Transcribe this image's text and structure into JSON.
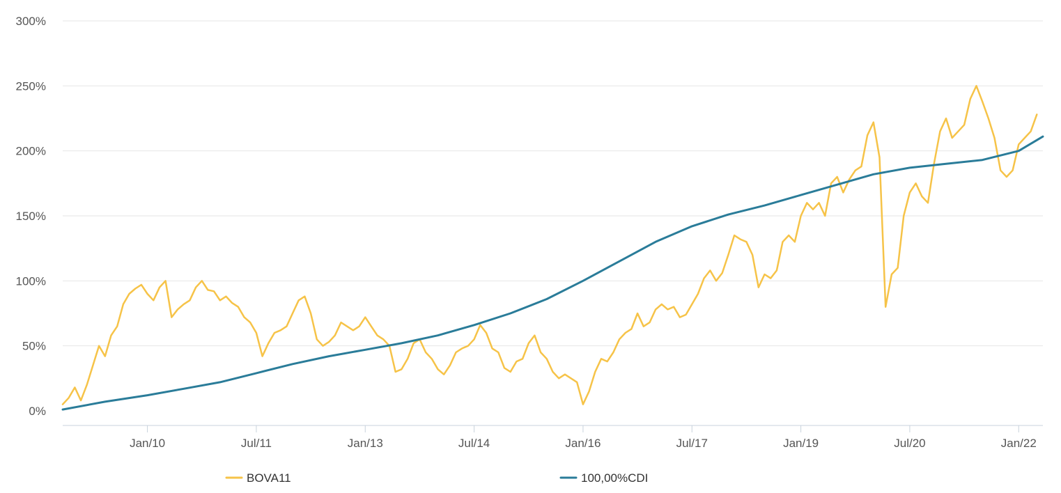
{
  "chart_data": {
    "type": "line",
    "x_tick_labels": [
      "Jan/10",
      "Jul/11",
      "Jan/13",
      "Jul/14",
      "Jan/16",
      "Jul/17",
      "Jan/19",
      "Jul/20",
      "Jan/22"
    ],
    "x_tick_dates": [
      "2010-01",
      "2011-07",
      "2013-01",
      "2014-07",
      "2016-01",
      "2017-07",
      "2019-01",
      "2020-07",
      "2022-01"
    ],
    "x_range": [
      "2008-11",
      "2022-05"
    ],
    "y_tick_labels": [
      "0%",
      "50%",
      "100%",
      "150%",
      "200%",
      "250%",
      "300%"
    ],
    "y_tick_values": [
      0,
      50,
      100,
      150,
      200,
      250,
      300
    ],
    "ylim": [
      0,
      300
    ],
    "y_unit": "%",
    "grid": "horizontal",
    "legend_position": "bottom",
    "series": [
      {
        "name": "BOVA11",
        "color": "#F6C348",
        "points": [
          [
            "2008-11",
            5
          ],
          [
            "2008-12",
            10
          ],
          [
            "2009-01",
            18
          ],
          [
            "2009-02",
            8
          ],
          [
            "2009-03",
            20
          ],
          [
            "2009-04",
            35
          ],
          [
            "2009-05",
            50
          ],
          [
            "2009-06",
            42
          ],
          [
            "2009-07",
            58
          ],
          [
            "2009-08",
            65
          ],
          [
            "2009-09",
            82
          ],
          [
            "2009-10",
            90
          ],
          [
            "2009-11",
            94
          ],
          [
            "2009-12",
            97
          ],
          [
            "2010-01",
            90
          ],
          [
            "2010-02",
            85
          ],
          [
            "2010-03",
            95
          ],
          [
            "2010-04",
            100
          ],
          [
            "2010-05",
            72
          ],
          [
            "2010-06",
            78
          ],
          [
            "2010-07",
            82
          ],
          [
            "2010-08",
            85
          ],
          [
            "2010-09",
            95
          ],
          [
            "2010-10",
            100
          ],
          [
            "2010-11",
            93
          ],
          [
            "2010-12",
            92
          ],
          [
            "2011-01",
            85
          ],
          [
            "2011-02",
            88
          ],
          [
            "2011-03",
            83
          ],
          [
            "2011-04",
            80
          ],
          [
            "2011-05",
            72
          ],
          [
            "2011-06",
            68
          ],
          [
            "2011-07",
            60
          ],
          [
            "2011-08",
            42
          ],
          [
            "2011-09",
            52
          ],
          [
            "2011-10",
            60
          ],
          [
            "2011-11",
            62
          ],
          [
            "2011-12",
            65
          ],
          [
            "2012-01",
            75
          ],
          [
            "2012-02",
            85
          ],
          [
            "2012-03",
            88
          ],
          [
            "2012-04",
            75
          ],
          [
            "2012-05",
            55
          ],
          [
            "2012-06",
            50
          ],
          [
            "2012-07",
            53
          ],
          [
            "2012-08",
            58
          ],
          [
            "2012-09",
            68
          ],
          [
            "2012-10",
            65
          ],
          [
            "2012-11",
            62
          ],
          [
            "2012-12",
            65
          ],
          [
            "2013-01",
            72
          ],
          [
            "2013-02",
            65
          ],
          [
            "2013-03",
            58
          ],
          [
            "2013-04",
            55
          ],
          [
            "2013-05",
            50
          ],
          [
            "2013-06",
            30
          ],
          [
            "2013-07",
            32
          ],
          [
            "2013-08",
            40
          ],
          [
            "2013-09",
            52
          ],
          [
            "2013-10",
            55
          ],
          [
            "2013-11",
            45
          ],
          [
            "2013-12",
            40
          ],
          [
            "2014-01",
            32
          ],
          [
            "2014-02",
            28
          ],
          [
            "2014-03",
            35
          ],
          [
            "2014-04",
            45
          ],
          [
            "2014-05",
            48
          ],
          [
            "2014-06",
            50
          ],
          [
            "2014-07",
            55
          ],
          [
            "2014-08",
            66
          ],
          [
            "2014-09",
            60
          ],
          [
            "2014-10",
            48
          ],
          [
            "2014-11",
            45
          ],
          [
            "2014-12",
            33
          ],
          [
            "2015-01",
            30
          ],
          [
            "2015-02",
            38
          ],
          [
            "2015-03",
            40
          ],
          [
            "2015-04",
            52
          ],
          [
            "2015-05",
            58
          ],
          [
            "2015-06",
            45
          ],
          [
            "2015-07",
            40
          ],
          [
            "2015-08",
            30
          ],
          [
            "2015-09",
            25
          ],
          [
            "2015-10",
            28
          ],
          [
            "2015-11",
            25
          ],
          [
            "2015-12",
            22
          ],
          [
            "2016-01",
            5
          ],
          [
            "2016-02",
            15
          ],
          [
            "2016-03",
            30
          ],
          [
            "2016-04",
            40
          ],
          [
            "2016-05",
            38
          ],
          [
            "2016-06",
            45
          ],
          [
            "2016-07",
            55
          ],
          [
            "2016-08",
            60
          ],
          [
            "2016-09",
            63
          ],
          [
            "2016-10",
            75
          ],
          [
            "2016-11",
            65
          ],
          [
            "2016-12",
            68
          ],
          [
            "2017-01",
            78
          ],
          [
            "2017-02",
            82
          ],
          [
            "2017-03",
            78
          ],
          [
            "2017-04",
            80
          ],
          [
            "2017-05",
            72
          ],
          [
            "2017-06",
            74
          ],
          [
            "2017-07",
            82
          ],
          [
            "2017-08",
            90
          ],
          [
            "2017-09",
            102
          ],
          [
            "2017-10",
            108
          ],
          [
            "2017-11",
            100
          ],
          [
            "2017-12",
            106
          ],
          [
            "2018-01",
            120
          ],
          [
            "2018-02",
            135
          ],
          [
            "2018-03",
            132
          ],
          [
            "2018-04",
            130
          ],
          [
            "2018-05",
            120
          ],
          [
            "2018-06",
            95
          ],
          [
            "2018-07",
            105
          ],
          [
            "2018-08",
            102
          ],
          [
            "2018-09",
            108
          ],
          [
            "2018-10",
            130
          ],
          [
            "2018-11",
            135
          ],
          [
            "2018-12",
            130
          ],
          [
            "2019-01",
            150
          ],
          [
            "2019-02",
            160
          ],
          [
            "2019-03",
            155
          ],
          [
            "2019-04",
            160
          ],
          [
            "2019-05",
            150
          ],
          [
            "2019-06",
            175
          ],
          [
            "2019-07",
            180
          ],
          [
            "2019-08",
            168
          ],
          [
            "2019-09",
            178
          ],
          [
            "2019-10",
            185
          ],
          [
            "2019-11",
            188
          ],
          [
            "2019-12",
            212
          ],
          [
            "2020-01",
            222
          ],
          [
            "2020-02",
            195
          ],
          [
            "2020-03",
            80
          ],
          [
            "2020-04",
            105
          ],
          [
            "2020-05",
            110
          ],
          [
            "2020-06",
            150
          ],
          [
            "2020-07",
            168
          ],
          [
            "2020-08",
            175
          ],
          [
            "2020-09",
            165
          ],
          [
            "2020-10",
            160
          ],
          [
            "2020-11",
            190
          ],
          [
            "2020-12",
            215
          ],
          [
            "2021-01",
            225
          ],
          [
            "2021-02",
            210
          ],
          [
            "2021-03",
            215
          ],
          [
            "2021-04",
            220
          ],
          [
            "2021-05",
            240
          ],
          [
            "2021-06",
            250
          ],
          [
            "2021-07",
            238
          ],
          [
            "2021-08",
            225
          ],
          [
            "2021-09",
            210
          ],
          [
            "2021-10",
            185
          ],
          [
            "2021-11",
            180
          ],
          [
            "2021-12",
            185
          ],
          [
            "2022-01",
            205
          ],
          [
            "2022-02",
            210
          ],
          [
            "2022-03",
            215
          ],
          [
            "2022-04",
            228
          ]
        ]
      },
      {
        "name": "100,00%CDI",
        "color": "#2A7C99",
        "points": [
          [
            "2008-11",
            1
          ],
          [
            "2009-06",
            7
          ],
          [
            "2010-01",
            12
          ],
          [
            "2010-07",
            17
          ],
          [
            "2011-01",
            22
          ],
          [
            "2011-07",
            29
          ],
          [
            "2012-01",
            36
          ],
          [
            "2012-07",
            42
          ],
          [
            "2013-01",
            47
          ],
          [
            "2013-07",
            52
          ],
          [
            "2014-01",
            58
          ],
          [
            "2014-07",
            66
          ],
          [
            "2015-01",
            75
          ],
          [
            "2015-07",
            86
          ],
          [
            "2016-01",
            100
          ],
          [
            "2016-07",
            115
          ],
          [
            "2017-01",
            130
          ],
          [
            "2017-07",
            142
          ],
          [
            "2018-01",
            151
          ],
          [
            "2018-07",
            158
          ],
          [
            "2019-01",
            166
          ],
          [
            "2019-07",
            174
          ],
          [
            "2020-01",
            182
          ],
          [
            "2020-07",
            187
          ],
          [
            "2021-01",
            190
          ],
          [
            "2021-07",
            193
          ],
          [
            "2022-01",
            200
          ],
          [
            "2022-05",
            211
          ]
        ]
      }
    ]
  }
}
